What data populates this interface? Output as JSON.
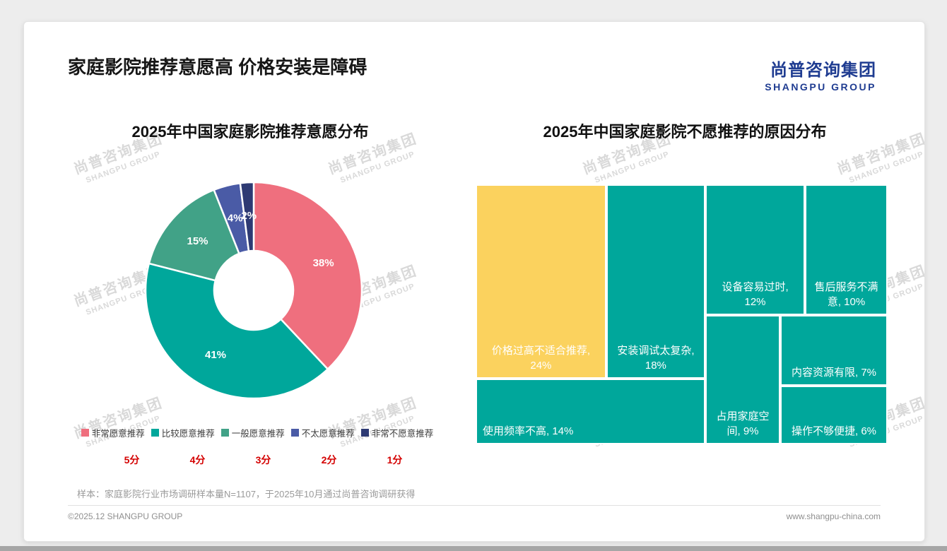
{
  "header": {
    "title": "家庭影院推荐意愿高 价格安装是障碍",
    "logo_cn": "尚普咨询集团",
    "logo_en": "SHANGPU GROUP"
  },
  "watermark": {
    "cn": "尚普咨询集团",
    "en": "SHANGPU GROUP"
  },
  "colors": {
    "pink": "#EF6F7E",
    "teal": "#00A79B",
    "green": "#41A287",
    "blue": "#4A5BA6",
    "navy": "#2E3A73",
    "yellow": "#FBD25E",
    "score_red": "#D40000",
    "logo_blue": "#1F3C91"
  },
  "chart_data": [
    {
      "type": "pie",
      "subtype": "donut",
      "title": "2025年中国家庭影院推荐意愿分布",
      "legend_position": "bottom",
      "series": [
        {
          "label": "非常愿意推荐",
          "score": "5分",
          "value": 38,
          "color": "#EF6F7E"
        },
        {
          "label": "比较愿意推荐",
          "score": "4分",
          "value": 41,
          "color": "#00A79B"
        },
        {
          "label": "一般愿意推荐",
          "score": "3分",
          "value": 15,
          "color": "#41A287"
        },
        {
          "label": "不太愿意推荐",
          "score": "2分",
          "value": 4,
          "color": "#4A5BA6"
        },
        {
          "label": "非常不愿意推荐",
          "score": "1分",
          "value": 2,
          "color": "#2E3A73"
        }
      ]
    },
    {
      "type": "treemap",
      "title": "2025年中国家庭影院不愿推荐的原因分布",
      "tiles": [
        {
          "label": "价格过高不适合推荐",
          "value": 24,
          "color": "#FBD25E"
        },
        {
          "label": "安装调试太复杂",
          "value": 18,
          "color": "#00A79B"
        },
        {
          "label": "使用频率不高",
          "value": 14,
          "color": "#00A79B"
        },
        {
          "label": "设备容易过时",
          "value": 12,
          "color": "#00A79B"
        },
        {
          "label": "售后服务不满意",
          "value": 10,
          "color": "#00A79B"
        },
        {
          "label": "占用家庭空间",
          "value": 9,
          "color": "#00A79B"
        },
        {
          "label": "内容资源有限",
          "value": 7,
          "color": "#00A79B"
        },
        {
          "label": "操作不够便捷",
          "value": 6,
          "color": "#00A79B"
        }
      ]
    }
  ],
  "footer": {
    "note": "样本：家庭影院行业市场调研样本量N=1107，于2025年10月通过尚普咨询调研获得",
    "copyright": "©2025.12 SHANGPU GROUP",
    "website": "www.shangpu-china.com"
  }
}
